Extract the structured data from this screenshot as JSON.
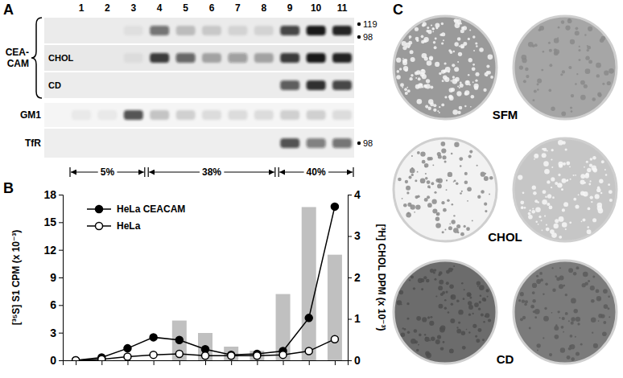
{
  "panel_a": {
    "letter": "A",
    "lanes": [
      1,
      2,
      3,
      4,
      5,
      6,
      7,
      8,
      9,
      10,
      11
    ],
    "group_label": "CEA-CAM",
    "ceacam_rows": [
      {
        "bands": [
          0,
          0,
          0.05,
          0.55,
          0.2,
          0.15,
          0.1,
          0.1,
          0.75,
          0.95,
          0.9
        ],
        "markers": [
          119,
          98
        ]
      },
      {
        "label": "CHOL",
        "bands": [
          0,
          0,
          0.05,
          0.8,
          0.6,
          0.3,
          0.35,
          0.3,
          0.8,
          0.95,
          0.9
        ]
      },
      {
        "label": "CD",
        "bands": [
          0,
          0,
          0,
          0,
          0,
          0,
          0,
          0,
          0.65,
          0.85,
          0.75
        ]
      }
    ],
    "other_rows": [
      {
        "label": "GM1",
        "bands": [
          0.05,
          0.05,
          0.7,
          0.2,
          0.15,
          0.1,
          0.1,
          0.1,
          0.15,
          0.15,
          0.1
        ]
      },
      {
        "label": "TfR",
        "bands": [
          0,
          0,
          0,
          0,
          0,
          0,
          0,
          0,
          0.7,
          0.5,
          0.55
        ],
        "markers": [
          98
        ]
      }
    ],
    "fractions": [
      {
        "label": "5%",
        "from": 1,
        "to": 3
      },
      {
        "label": "38%",
        "from": 4,
        "to": 8
      },
      {
        "label": "40%",
        "from": 9,
        "to": 11
      }
    ]
  },
  "panel_b": {
    "letter": "B"
  },
  "chart_data": {
    "type": "line",
    "x": [
      1,
      2,
      3,
      4,
      5,
      6,
      7,
      8,
      9,
      10,
      11
    ],
    "xlim": [
      0.5,
      11.5
    ],
    "xticks": [
      1,
      2,
      3,
      4,
      5,
      6,
      7,
      8,
      9,
      10,
      11
    ],
    "tick_labels": "y",
    "ylabel": "[³⁵S] S1 CPM (x 10⁻³)",
    "ylim": [
      0,
      18
    ],
    "yticks": [
      0,
      3,
      6,
      9,
      12,
      15,
      18
    ],
    "y2label": "[³H] CHOL DPM (x 10⁻³)",
    "y2lim": [
      0,
      4
    ],
    "y2ticks": [
      0,
      1,
      2,
      3,
      4
    ],
    "legend": "upper-left",
    "series": [
      {
        "type": "bar",
        "axis": "y2",
        "color": "#c0c0c0",
        "values": [
          0,
          0,
          0,
          0,
          0.96,
          0.66,
          0.33,
          0.23,
          1.6,
          3.7,
          2.55
        ]
      },
      {
        "name": "HeLa CEACAM",
        "type": "line",
        "marker": "filled-circle",
        "color": "#000000",
        "values": [
          0,
          0.3,
          1.3,
          2.5,
          2.2,
          1.2,
          0.6,
          0.7,
          1.0,
          4.6,
          16.7
        ]
      },
      {
        "name": "HeLa",
        "type": "line",
        "marker": "open-circle",
        "color": "#000000",
        "values": [
          0,
          0.1,
          0.4,
          0.6,
          0.7,
          0.5,
          0.5,
          0.5,
          0.6,
          1.0,
          2.3
        ]
      }
    ]
  },
  "panel_c": {
    "letter": "C",
    "rows": [
      "SFM",
      "CHOL",
      "CD"
    ]
  }
}
